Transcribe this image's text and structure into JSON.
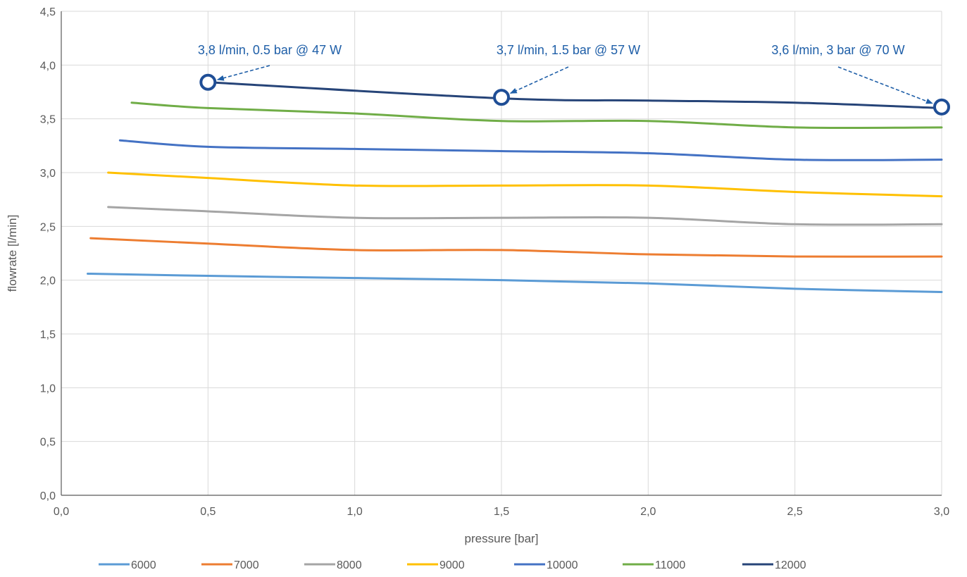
{
  "chart_data": {
    "type": "line",
    "title": "",
    "xlabel": "pressure [bar]",
    "ylabel": "flowrate [l/min]",
    "xlim": [
      0,
      3
    ],
    "ylim": [
      0,
      4.5
    ],
    "xticks": [
      "0,0",
      "0,5",
      "1,0",
      "1,5",
      "2,0",
      "2,5",
      "3,0"
    ],
    "yticks": [
      "0,0",
      "0,5",
      "1,0",
      "1,5",
      "2,0",
      "2,5",
      "3,0",
      "3,5",
      "4,0",
      "4,5"
    ],
    "grid": "vertical and horizontal",
    "legend_position": "bottom",
    "series": [
      {
        "name": "6000",
        "color": "#5b9bd5",
        "x": [
          0.09,
          0.5,
          1.0,
          1.5,
          2.0,
          2.5,
          3.0
        ],
        "y": [
          2.06,
          2.04,
          2.02,
          2.0,
          1.97,
          1.92,
          1.89
        ]
      },
      {
        "name": "7000",
        "color": "#ed7d31",
        "x": [
          0.1,
          0.5,
          1.0,
          1.5,
          2.0,
          2.5,
          3.0
        ],
        "y": [
          2.39,
          2.34,
          2.28,
          2.28,
          2.24,
          2.22,
          2.22
        ]
      },
      {
        "name": "8000",
        "color": "#a5a5a5",
        "x": [
          0.16,
          0.5,
          1.0,
          1.5,
          2.0,
          2.5,
          3.0
        ],
        "y": [
          2.68,
          2.64,
          2.58,
          2.58,
          2.58,
          2.52,
          2.52
        ]
      },
      {
        "name": "9000",
        "color": "#ffc000",
        "x": [
          0.16,
          0.5,
          1.0,
          1.5,
          2.0,
          2.5,
          3.0
        ],
        "y": [
          3.0,
          2.95,
          2.88,
          2.88,
          2.88,
          2.82,
          2.78
        ]
      },
      {
        "name": "10000",
        "color": "#4472c4",
        "x": [
          0.2,
          0.5,
          1.0,
          1.5,
          2.0,
          2.5,
          3.0
        ],
        "y": [
          3.3,
          3.24,
          3.22,
          3.2,
          3.18,
          3.12,
          3.12
        ]
      },
      {
        "name": "11000",
        "color": "#70ad47",
        "x": [
          0.24,
          0.5,
          1.0,
          1.5,
          2.0,
          2.5,
          3.0
        ],
        "y": [
          3.65,
          3.6,
          3.55,
          3.48,
          3.48,
          3.42,
          3.42
        ]
      },
      {
        "name": "12000",
        "color": "#264478",
        "x": [
          0.5,
          1.5,
          2.0,
          2.5,
          3.0
        ],
        "y": [
          3.84,
          3.69,
          3.67,
          3.65,
          3.6
        ]
      }
    ],
    "annotations": [
      {
        "text": "3,8 l/min, 0.5 bar @ 47 W",
        "x": 0.5,
        "y": 3.84
      },
      {
        "text": "3,7 l/min, 1.5 bar @ 57 W",
        "x": 1.5,
        "y": 3.7
      },
      {
        "text": "3,6 l/min, 3 bar @ 70 W",
        "x": 3.0,
        "y": 3.61
      }
    ],
    "annotation_color": "#1f5fa8",
    "marker_color": "#1f4e96"
  }
}
